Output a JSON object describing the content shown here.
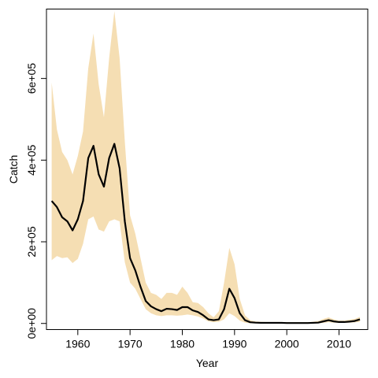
{
  "chart_data": {
    "type": "area",
    "title": "",
    "xlabel": "Year",
    "ylabel": "Catch",
    "xlim": [
      1954,
      2015.5
    ],
    "ylim": [
      -15000,
      770000
    ],
    "xticks": [
      1960,
      1970,
      1980,
      1990,
      2000,
      2010
    ],
    "xtick_labels": [
      "1960",
      "1970",
      "1980",
      "1990",
      "2000",
      "2010"
    ],
    "yticks": [
      0,
      200000,
      400000,
      600000
    ],
    "ytick_labels": [
      "0e+00",
      "2e+05",
      "4e+05",
      "6e+05"
    ],
    "grid": false,
    "legend": false,
    "colors": {
      "band": "#f5deb3",
      "line": "#000000",
      "axis": "#000000"
    },
    "x": [
      1955,
      1956,
      1957,
      1958,
      1959,
      1960,
      1961,
      1962,
      1963,
      1964,
      1965,
      1966,
      1967,
      1968,
      1969,
      1970,
      1971,
      1972,
      1973,
      1974,
      1975,
      1976,
      1977,
      1978,
      1979,
      1980,
      1981,
      1982,
      1983,
      1984,
      1985,
      1986,
      1987,
      1988,
      1989,
      1990,
      1991,
      1992,
      1993,
      1994,
      1995,
      1996,
      1997,
      1998,
      1999,
      2000,
      2001,
      2002,
      2003,
      2004,
      2005,
      2006,
      2007,
      2008,
      2009,
      2010,
      2011,
      2012,
      2013,
      2014
    ],
    "series": [
      {
        "values": [
          300000,
          285000,
          260000,
          250000,
          228000,
          255000,
          300000,
          405000,
          435000,
          365000,
          335000,
          405000,
          440000,
          380000,
          250000,
          160000,
          130000,
          90000,
          55000,
          42000,
          35000,
          30000,
          36000,
          35000,
          33000,
          40000,
          40000,
          32000,
          28000,
          20000,
          10000,
          8000,
          10000,
          35000,
          85000,
          62000,
          25000,
          8000,
          3000,
          2000,
          1500,
          1500,
          1500,
          1500,
          1500,
          1000,
          1000,
          1000,
          1000,
          1000,
          1500,
          2000,
          5000,
          8000,
          5000,
          3500,
          3500,
          4500,
          6000,
          10000
        ],
        "lower": [
          155000,
          165000,
          160000,
          162000,
          148000,
          158000,
          195000,
          255000,
          262000,
          230000,
          225000,
          250000,
          255000,
          250000,
          150000,
          100000,
          85000,
          60000,
          35000,
          25000,
          20000,
          18000,
          20000,
          20000,
          19000,
          20000,
          22000,
          20000,
          17000,
          12000,
          5000,
          3000,
          4000,
          10000,
          25000,
          18000,
          7000,
          2000,
          500,
          300,
          200,
          200,
          200,
          200,
          200,
          200,
          200,
          200,
          200,
          200,
          300,
          500,
          1500,
          3000,
          2000,
          1500,
          1500,
          2000,
          2500,
          4000
        ],
        "upper": [
          590000,
          475000,
          420000,
          400000,
          365000,
          410000,
          470000,
          625000,
          710000,
          585000,
          505000,
          650000,
          765000,
          650000,
          445000,
          265000,
          220000,
          160000,
          100000,
          75000,
          70000,
          60000,
          75000,
          75000,
          70000,
          90000,
          75000,
          52000,
          50000,
          40000,
          25000,
          15000,
          30000,
          100000,
          185000,
          145000,
          60000,
          20000,
          8000,
          5000,
          4000,
          3500,
          3500,
          3500,
          3500,
          3000,
          3000,
          3000,
          3000,
          3000,
          4000,
          6000,
          11000,
          15000,
          10000,
          7000,
          7000,
          9000,
          11000,
          16000
        ]
      }
    ]
  }
}
